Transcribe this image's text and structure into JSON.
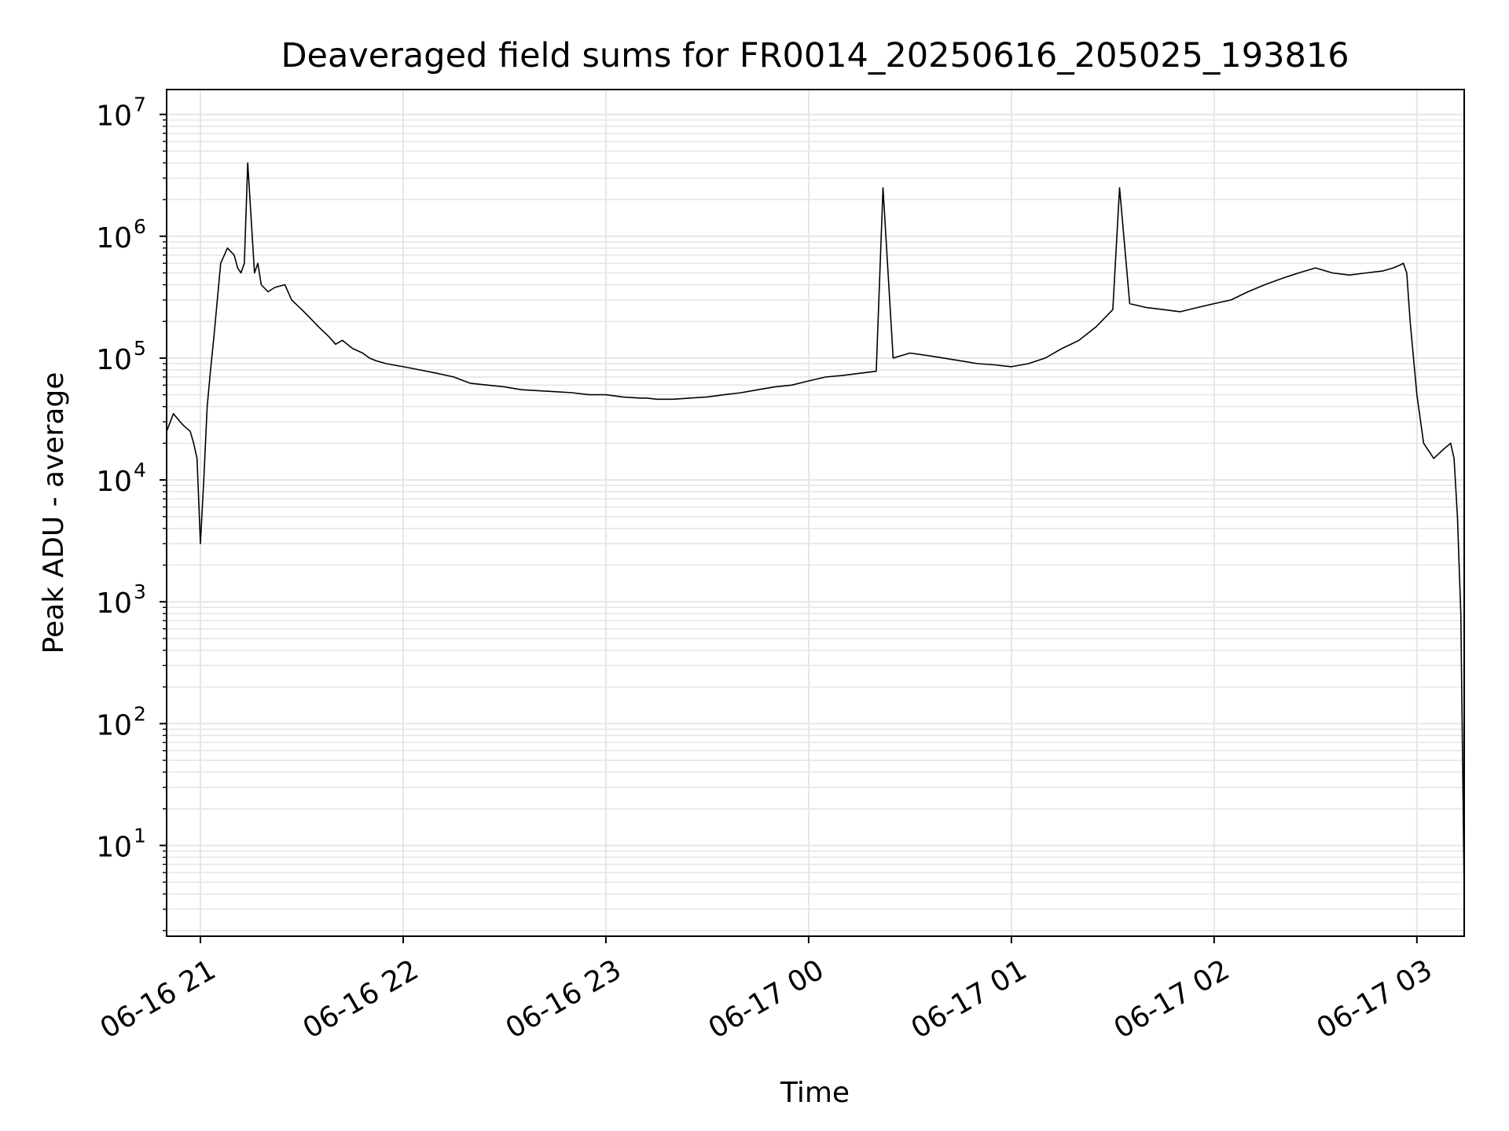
{
  "chart_data": {
    "type": "line",
    "title": "Deaveraged field sums for FR0014_20250616_205025_193816",
    "xlabel": "Time",
    "ylabel": "Peak ADU - average",
    "x_ticks": [
      "06-16 21",
      "06-16 22",
      "06-16 23",
      "06-17 00",
      "06-17 01",
      "06-17 02",
      "06-17 03"
    ],
    "y_ticks": [
      {
        "base": "10",
        "exp": "1"
      },
      {
        "base": "10",
        "exp": "2"
      },
      {
        "base": "10",
        "exp": "3"
      },
      {
        "base": "10",
        "exp": "4"
      },
      {
        "base": "10",
        "exp": "5"
      },
      {
        "base": "10",
        "exp": "6"
      },
      {
        "base": "10",
        "exp": "7"
      }
    ],
    "xlim": [
      "2025-06-16 20:50",
      "2025-06-17 03:14"
    ],
    "ylim": [
      1.8,
      16000000
    ],
    "yscale": "log",
    "grid": true,
    "line_color": "#000000",
    "grid_color": "#e6e6e6",
    "series": [
      {
        "x": [
          "2025-06-16 20:50",
          "2025-06-16 20:52",
          "2025-06-16 20:54",
          "2025-06-16 20:55",
          "2025-06-16 20:57",
          "2025-06-16 20:58",
          "2025-06-16 20:59",
          "2025-06-16 21:00",
          "2025-06-16 21:01",
          "2025-06-16 21:02",
          "2025-06-16 21:03",
          "2025-06-16 21:04",
          "2025-06-16 21:05",
          "2025-06-16 21:06",
          "2025-06-16 21:08",
          "2025-06-16 21:10",
          "2025-06-16 21:11",
          "2025-06-16 21:12",
          "2025-06-16 21:13",
          "2025-06-16 21:14",
          "2025-06-16 21:16",
          "2025-06-16 21:17",
          "2025-06-16 21:18",
          "2025-06-16 21:20",
          "2025-06-16 21:22",
          "2025-06-16 21:25",
          "2025-06-16 21:27",
          "2025-06-16 21:30",
          "2025-06-16 21:32",
          "2025-06-16 21:35",
          "2025-06-16 21:38",
          "2025-06-16 21:40",
          "2025-06-16 21:42",
          "2025-06-16 21:45",
          "2025-06-16 21:48",
          "2025-06-16 21:50",
          "2025-06-16 21:52",
          "2025-06-16 21:55",
          "2025-06-16 22:00",
          "2025-06-16 22:05",
          "2025-06-16 22:10",
          "2025-06-16 22:15",
          "2025-06-16 22:18",
          "2025-06-16 22:20",
          "2025-06-16 22:25",
          "2025-06-16 22:30",
          "2025-06-16 22:35",
          "2025-06-16 22:40",
          "2025-06-16 22:45",
          "2025-06-16 22:50",
          "2025-06-16 22:55",
          "2025-06-16 23:00",
          "2025-06-16 23:05",
          "2025-06-16 23:10",
          "2025-06-16 23:12",
          "2025-06-16 23:15",
          "2025-06-16 23:20",
          "2025-06-16 23:25",
          "2025-06-16 23:30",
          "2025-06-16 23:35",
          "2025-06-16 23:40",
          "2025-06-16 23:45",
          "2025-06-16 23:50",
          "2025-06-16 23:55",
          "2025-06-17 00:00",
          "2025-06-17 00:05",
          "2025-06-17 00:10",
          "2025-06-17 00:15",
          "2025-06-17 00:20",
          "2025-06-17 00:22",
          "2025-06-17 00:25",
          "2025-06-17 00:30",
          "2025-06-17 00:35",
          "2025-06-17 00:40",
          "2025-06-17 00:45",
          "2025-06-17 00:50",
          "2025-06-17 00:55",
          "2025-06-17 01:00",
          "2025-06-17 01:05",
          "2025-06-17 01:10",
          "2025-06-17 01:15",
          "2025-06-17 01:20",
          "2025-06-17 01:25",
          "2025-06-17 01:30",
          "2025-06-17 01:32",
          "2025-06-17 01:35",
          "2025-06-17 01:40",
          "2025-06-17 01:45",
          "2025-06-17 01:50",
          "2025-06-17 01:55",
          "2025-06-17 02:00",
          "2025-06-17 02:05",
          "2025-06-17 02:10",
          "2025-06-17 02:15",
          "2025-06-17 02:20",
          "2025-06-17 02:25",
          "2025-06-17 02:30",
          "2025-06-17 02:35",
          "2025-06-17 02:40",
          "2025-06-17 02:45",
          "2025-06-17 02:50",
          "2025-06-17 02:53",
          "2025-06-17 02:55",
          "2025-06-17 02:56",
          "2025-06-17 02:57",
          "2025-06-17 02:58",
          "2025-06-17 03:00",
          "2025-06-17 03:02",
          "2025-06-17 03:05",
          "2025-06-17 03:08",
          "2025-06-17 03:10",
          "2025-06-17 03:11",
          "2025-06-17 03:12",
          "2025-06-17 03:13",
          "2025-06-17 03:14"
        ],
        "y": [
          25000,
          35000,
          30000,
          28000,
          25000,
          20000,
          15000,
          3000,
          10000,
          40000,
          80000,
          150000,
          300000,
          600000,
          800000,
          700000,
          550000,
          500000,
          600000,
          4000000,
          500000,
          600000,
          400000,
          350000,
          380000,
          400000,
          300000,
          250000,
          220000,
          180000,
          150000,
          130000,
          140000,
          120000,
          110000,
          100000,
          95000,
          90000,
          85000,
          80000,
          75000,
          70000,
          65000,
          62000,
          60000,
          58000,
          55000,
          54000,
          53000,
          52000,
          50000,
          50000,
          48000,
          47000,
          47000,
          46000,
          46000,
          47000,
          48000,
          50000,
          52000,
          55000,
          58000,
          60000,
          65000,
          70000,
          72000,
          75000,
          78000,
          2500000,
          100000,
          110000,
          105000,
          100000,
          95000,
          90000,
          88000,
          85000,
          90000,
          100000,
          120000,
          140000,
          180000,
          250000,
          2500000,
          280000,
          260000,
          250000,
          240000,
          260000,
          280000,
          300000,
          350000,
          400000,
          450000,
          500000,
          550000,
          500000,
          480000,
          500000,
          520000,
          550000,
          580000,
          600000,
          500000,
          200000,
          50000,
          20000,
          15000,
          18000,
          20000,
          15000,
          5000,
          800,
          4
        ]
      }
    ]
  }
}
